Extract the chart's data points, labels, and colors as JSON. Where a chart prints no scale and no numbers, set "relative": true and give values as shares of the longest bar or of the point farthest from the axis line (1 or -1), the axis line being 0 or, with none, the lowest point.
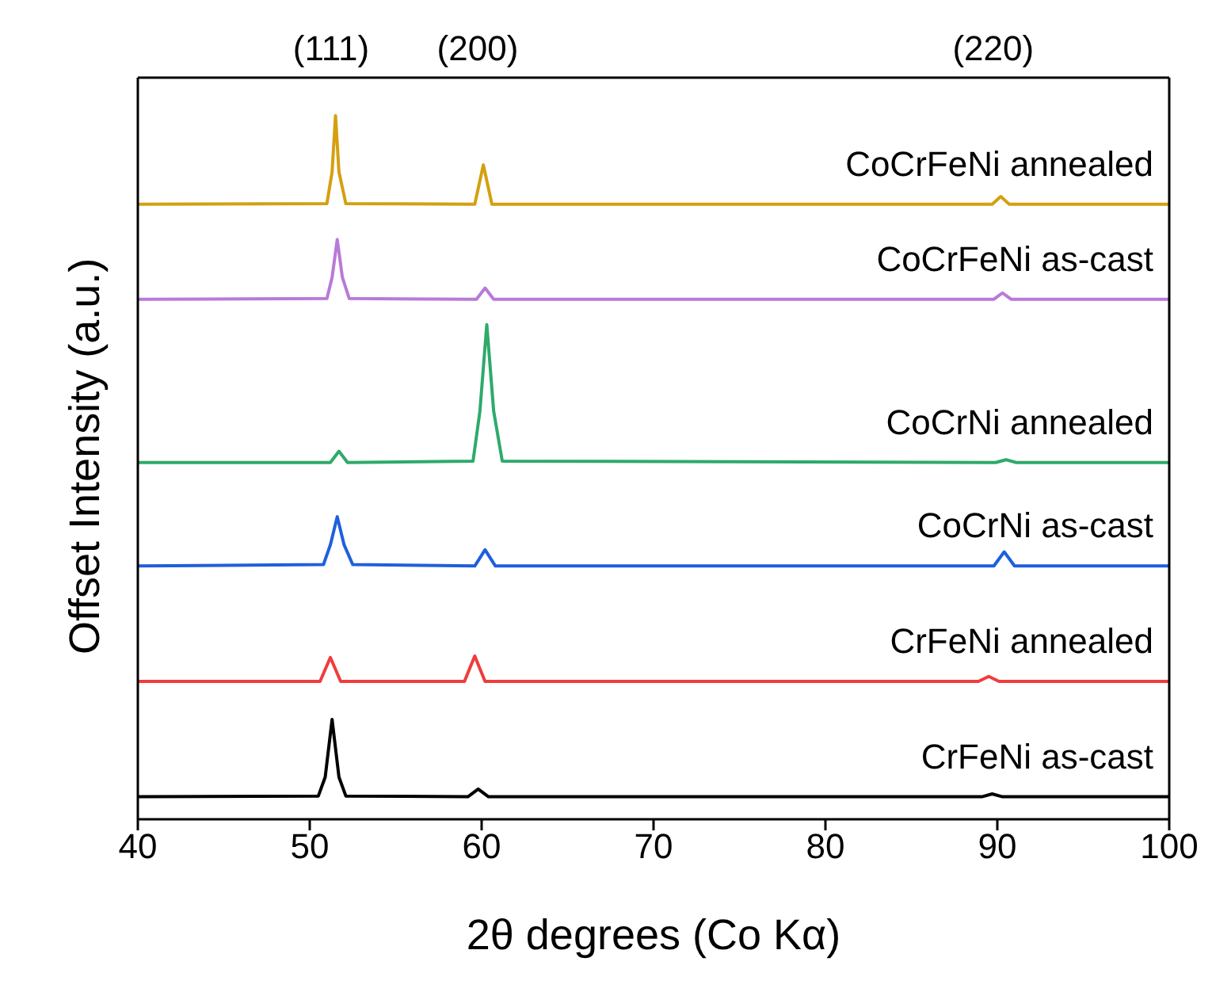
{
  "chart_data": {
    "type": "line",
    "xlabel": "2θ degrees (Co Kα)",
    "ylabel": "Offset Intensity (a.u.)",
    "relative": true,
    "xlim": [
      40,
      100
    ],
    "xticks": [
      40,
      50,
      60,
      70,
      80,
      90,
      100
    ],
    "marker": "none",
    "line_style": "solid",
    "annotations": [
      "(111)",
      "(200)",
      "(220)"
    ],
    "series": [
      {
        "name": "CrFeNi as-cast",
        "color": "#000000",
        "x": [
          40,
          50.5,
          50.9,
          51.3,
          51.7,
          52.1,
          59.2,
          59.8,
          60.4,
          89.1,
          89.7,
          90.3,
          100
        ],
        "values": [
          0.032,
          0.033,
          0.06,
          0.142,
          0.06,
          0.033,
          0.032,
          0.043,
          0.032,
          0.032,
          0.036,
          0.032,
          0.032
        ]
      },
      {
        "name": "CrFeNi annealed",
        "color": "#f03c3c",
        "x": [
          40,
          50.6,
          51.2,
          51.8,
          59.0,
          59.6,
          60.2,
          88.9,
          89.5,
          90.1,
          100
        ],
        "values": [
          0.196,
          0.196,
          0.23,
          0.196,
          0.196,
          0.232,
          0.196,
          0.196,
          0.203,
          0.196,
          0.196
        ]
      },
      {
        "name": "CoCrNi as-cast",
        "color": "#1f5fdc",
        "x": [
          40,
          50.8,
          51.2,
          51.6,
          52.0,
          52.5,
          59.6,
          60.2,
          60.8,
          89.8,
          90.4,
          91.0,
          100
        ],
        "values": [
          0.36,
          0.362,
          0.39,
          0.43,
          0.39,
          0.362,
          0.36,
          0.383,
          0.36,
          0.36,
          0.38,
          0.36,
          0.36
        ]
      },
      {
        "name": "CoCrNi annealed",
        "color": "#2eaa6a",
        "x": [
          40,
          51.2,
          51.7,
          52.2,
          59.5,
          59.9,
          60.3,
          60.7,
          61.2,
          89.9,
          90.5,
          91.1,
          100
        ],
        "values": [
          0.507,
          0.507,
          0.523,
          0.507,
          0.509,
          0.58,
          0.703,
          0.58,
          0.509,
          0.507,
          0.511,
          0.507,
          0.507
        ]
      },
      {
        "name": "CoCrFeNi as-cast",
        "color": "#b87ad8",
        "x": [
          40,
          51.0,
          51.3,
          51.6,
          51.9,
          52.3,
          59.7,
          60.2,
          60.7,
          89.8,
          90.3,
          90.8,
          100
        ],
        "values": [
          0.739,
          0.74,
          0.77,
          0.824,
          0.77,
          0.74,
          0.739,
          0.755,
          0.739,
          0.739,
          0.748,
          0.739,
          0.739
        ]
      },
      {
        "name": "CoCrFeNi annealed",
        "color": "#d4a010",
        "x": [
          40,
          51.0,
          51.3,
          51.5,
          51.7,
          52.1,
          59.6,
          60.1,
          60.6,
          89.7,
          90.2,
          90.7,
          100
        ],
        "values": [
          0.874,
          0.875,
          0.92,
          1.0,
          0.92,
          0.875,
          0.874,
          0.93,
          0.874,
          0.874,
          0.885,
          0.874,
          0.874
        ]
      }
    ]
  }
}
